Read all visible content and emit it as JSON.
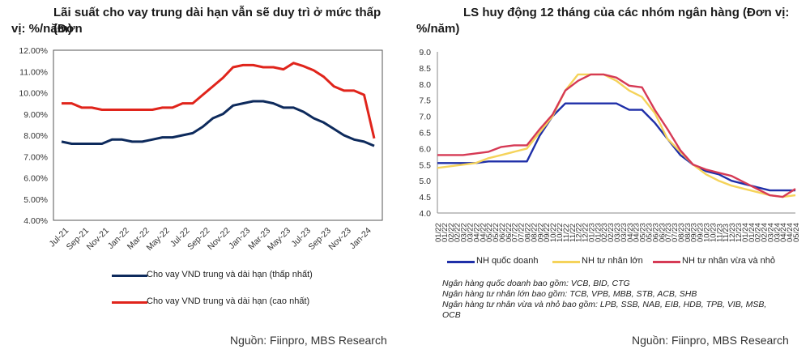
{
  "left": {
    "title_line1": "Lãi suất cho vay trung dài hạn vẫn sẽ duy trì ở mức thấp (Đơn",
    "title_line2": "vị: %/năm)",
    "source": "Nguồn: Fiinpro, MBS Research",
    "legend": [
      {
        "label": "Cho vay VND trung và dài hạn (thấp nhất)",
        "color": "#0d2a5c"
      },
      {
        "label": "Cho vay VND trung và dài hạn (cao nhất)",
        "color": "#e0241b"
      }
    ]
  },
  "right": {
    "title_line1": "LS huy động 12 tháng của các nhóm ngân hàng (Đơn vị:",
    "title_line2": "%/năm)",
    "source": "Nguồn: Fiinpro, MBS Research",
    "legend": [
      {
        "label": "NH quốc doanh",
        "color": "#1f2fa8"
      },
      {
        "label": "NH tư nhân lớn",
        "color": "#f5d35a"
      },
      {
        "label": "NH tư nhân vừa và nhỏ",
        "color": "#d63a55"
      }
    ],
    "notes": [
      "Ngân hàng quốc doanh bao gồm: VCB, BID, CTG",
      "Ngân hàng tư nhân lớn bao gồm: TCB, VPB, MBB, STB, ACB, SHB",
      "Ngân hàng tư nhân vừa và nhỏ bao gồm: LPB, SSB, NAB, EIB, HDB, TPB, VIB, MSB,",
      "OCB"
    ]
  },
  "chart_data": [
    {
      "type": "line",
      "title": "Lãi suất cho vay trung dài hạn vẫn sẽ duy trì ở mức thấp (Đơn vị: %/năm)",
      "xlabel": "",
      "ylabel": "",
      "ylim": [
        4,
        12
      ],
      "yticks": [
        "4.00%",
        "5.00%",
        "6.00%",
        "7.00%",
        "8.00%",
        "9.00%",
        "10.00%",
        "11.00%",
        "12.00%"
      ],
      "x": [
        "Jul-21",
        "Aug-21",
        "Sep-21",
        "Oct-21",
        "Nov-21",
        "Dec-21",
        "Jan-22",
        "Feb-22",
        "Mar-22",
        "Apr-22",
        "May-22",
        "Jun-22",
        "Jul-22",
        "Aug-22",
        "Sep-22",
        "Oct-22",
        "Nov-22",
        "Dec-22",
        "Jan-23",
        "Feb-23",
        "Mar-23",
        "Apr-23",
        "May-23",
        "Jun-23",
        "Jul-23",
        "Aug-23",
        "Sep-23",
        "Oct-23",
        "Nov-23",
        "Dec-23",
        "Jan-24",
        "Feb-24"
      ],
      "xtick_labels": [
        "Jul-21",
        "Sep-21",
        "Nov-21",
        "Jan-22",
        "Mar-22",
        "May-22",
        "Jul-22",
        "Sep-22",
        "Nov-22",
        "Jan-23",
        "Mar-23",
        "May-23",
        "Jul-23",
        "Sep-23",
        "Nov-23",
        "Jan-24"
      ],
      "series": [
        {
          "name": "Cho vay VND trung và dài hạn (thấp nhất)",
          "values": [
            7.7,
            7.6,
            7.6,
            7.6,
            7.6,
            7.8,
            7.8,
            7.7,
            7.7,
            7.8,
            7.9,
            7.9,
            8.0,
            8.1,
            8.4,
            8.8,
            9.0,
            9.4,
            9.5,
            9.6,
            9.6,
            9.5,
            9.3,
            9.3,
            9.1,
            8.8,
            8.6,
            8.3,
            8.0,
            7.8,
            7.7,
            7.5
          ]
        },
        {
          "name": "Cho vay VND trung và dài hạn (cao nhất)",
          "values": [
            9.5,
            9.5,
            9.3,
            9.3,
            9.2,
            9.2,
            9.2,
            9.2,
            9.2,
            9.2,
            9.3,
            9.3,
            9.5,
            9.5,
            9.9,
            10.3,
            10.7,
            11.2,
            11.3,
            11.3,
            11.2,
            11.2,
            11.1,
            11.4,
            11.25,
            11.05,
            10.75,
            10.3,
            10.1,
            10.1,
            9.9,
            7.85
          ]
        }
      ]
    },
    {
      "type": "line",
      "title": "LS huy động 12 tháng của các nhóm ngân hàng (Đơn vị: %/năm)",
      "xlabel": "",
      "ylabel": "",
      "ylim": [
        4.0,
        9.0
      ],
      "yticks": [
        "4.0",
        "4.5",
        "5.0",
        "5.5",
        "6.0",
        "6.5",
        "7.0",
        "7.5",
        "8.0",
        "8.5",
        "9.0"
      ],
      "x": [
        "01/22",
        "02/22",
        "03/22",
        "04/22",
        "05/22",
        "06/22",
        "07/22",
        "08/22",
        "09/22",
        "10/22",
        "11/22",
        "12/22",
        "01/23",
        "02/23",
        "03/23",
        "04/23",
        "05/23",
        "06/23",
        "07/23",
        "08/23",
        "09/23",
        "10/23",
        "11/23",
        "12/23",
        "01/24",
        "02/24",
        "03/24",
        "04/24",
        "05/24"
      ],
      "series": [
        {
          "name": "NH quốc doanh",
          "values": [
            5.55,
            5.55,
            5.55,
            5.55,
            5.6,
            5.6,
            5.6,
            5.6,
            6.4,
            7.0,
            7.4,
            7.4,
            7.4,
            7.4,
            7.4,
            7.2,
            7.2,
            6.8,
            6.3,
            5.8,
            5.5,
            5.3,
            5.2,
            5.0,
            4.9,
            4.8,
            4.7,
            4.7,
            4.7
          ]
        },
        {
          "name": "NH tư nhân lớn",
          "values": [
            5.4,
            5.45,
            5.5,
            5.55,
            5.7,
            5.8,
            5.9,
            6.0,
            6.5,
            7.0,
            7.8,
            8.3,
            8.3,
            8.3,
            8.1,
            7.8,
            7.6,
            7.1,
            6.3,
            5.9,
            5.5,
            5.2,
            5.0,
            4.85,
            4.75,
            4.65,
            4.55,
            4.5,
            4.55
          ]
        },
        {
          "name": "NH tư nhân vừa và nhỏ",
          "values": [
            5.8,
            5.8,
            5.8,
            5.85,
            5.9,
            6.05,
            6.1,
            6.1,
            6.6,
            7.05,
            7.8,
            8.1,
            8.3,
            8.3,
            8.2,
            7.95,
            7.9,
            7.2,
            6.6,
            5.95,
            5.5,
            5.35,
            5.25,
            5.15,
            4.95,
            4.75,
            4.55,
            4.5,
            4.75
          ]
        }
      ]
    }
  ]
}
